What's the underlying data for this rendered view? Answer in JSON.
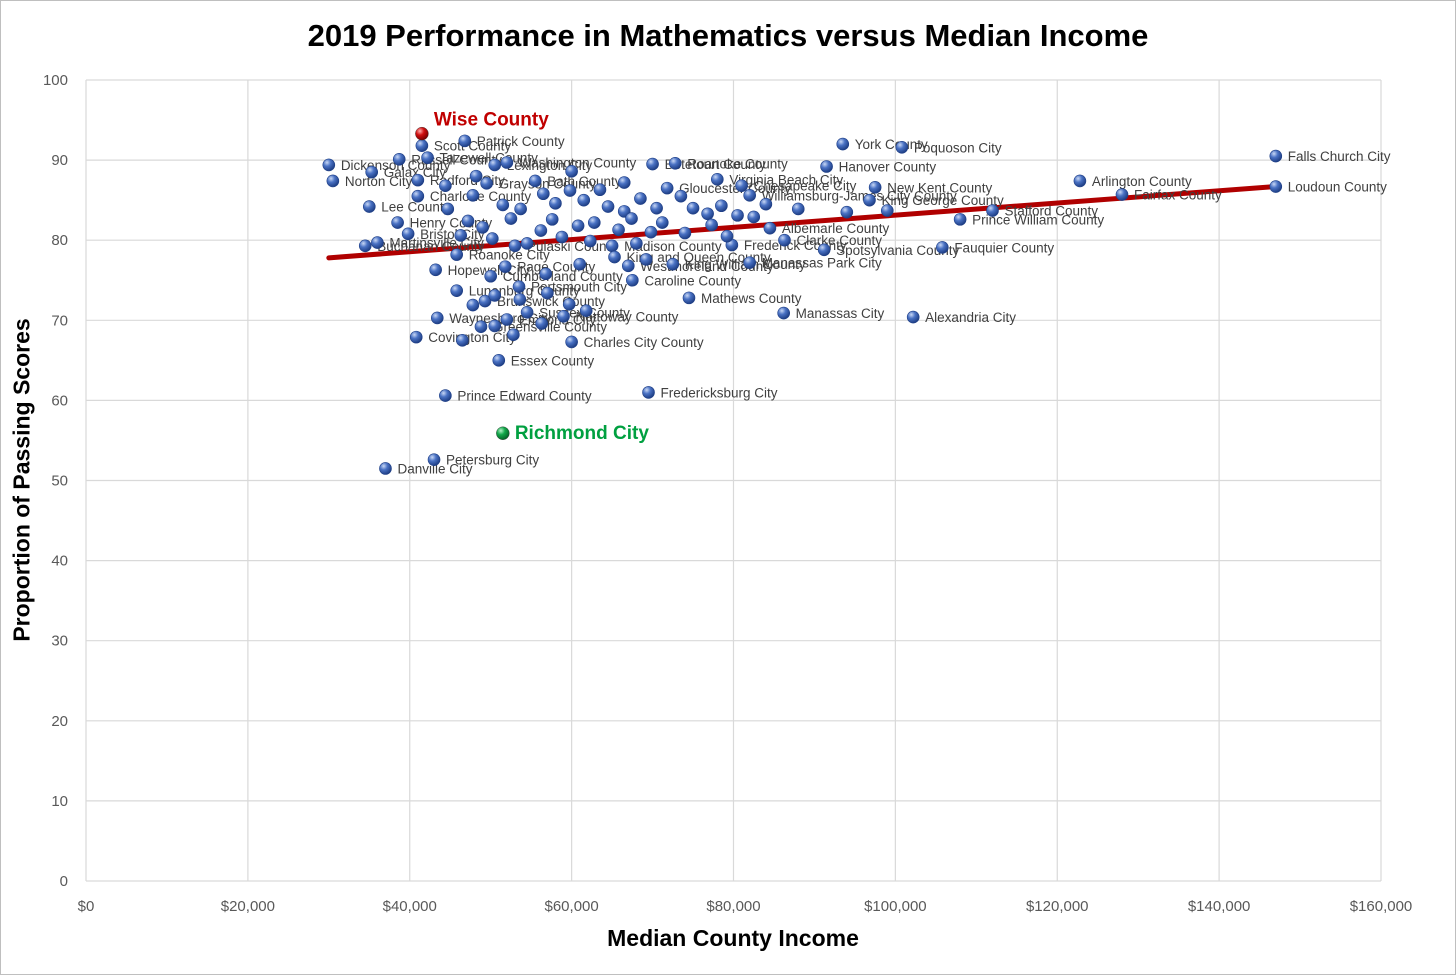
{
  "chart_data": {
    "type": "scatter",
    "title": "2019 Performance in Mathematics versus Median Income",
    "xlabel": "Median County Income",
    "ylabel": "Proportion of Passing Scores",
    "xlim": [
      0,
      160000
    ],
    "ylim": [
      0,
      100
    ],
    "x_ticks": [
      0,
      20000,
      40000,
      60000,
      80000,
      100000,
      120000,
      140000,
      160000
    ],
    "x_tick_labels": [
      "$0",
      "$20,000",
      "$40,000",
      "$60,000",
      "$80,000",
      "$100,000",
      "$120,000",
      "$140,000",
      "$160,000"
    ],
    "y_ticks": [
      0,
      10,
      20,
      30,
      40,
      50,
      60,
      70,
      80,
      90,
      100
    ],
    "y_tick_labels": [
      "0",
      "10",
      "20",
      "30",
      "40",
      "50",
      "60",
      "70",
      "80",
      "90",
      "100"
    ],
    "grid": true,
    "legend": "none",
    "colors": {
      "points": "#3f66b8",
      "trendline": "#b00000",
      "wise": "#c00000",
      "richmond": "#00a040",
      "grid": "#d9d9d9"
    },
    "trendline": {
      "x": [
        30000,
        147000
      ],
      "y": [
        77.8,
        86.7
      ]
    },
    "highlighted": [
      {
        "name": "Wise County",
        "x": 41500,
        "y": 93.3,
        "color": "#c00000"
      },
      {
        "name": "Richmond City",
        "x": 51500,
        "y": 55.9,
        "color": "#00a040"
      }
    ],
    "points": [
      {
        "name": "Patrick County",
        "x": 46800,
        "y": 92.4
      },
      {
        "name": "Scott County",
        "x": 41500,
        "y": 91.8
      },
      {
        "name": "Dickenson County",
        "x": 30000,
        "y": 89.4
      },
      {
        "name": "Russell County",
        "x": 38700,
        "y": 90.1
      },
      {
        "name": "Tazewell County",
        "x": 42200,
        "y": 90.3
      },
      {
        "name": "Washington County",
        "x": 52000,
        "y": 89.7
      },
      {
        "name": "Lexington City",
        "x": 50500,
        "y": 89.4
      },
      {
        "name": "Roanoke County",
        "x": 72800,
        "y": 89.6
      },
      {
        "name": "Botetourt County",
        "x": 70000,
        "y": 89.5
      },
      {
        "name": "York County",
        "x": 93500,
        "y": 92.0
      },
      {
        "name": "Poquoson City",
        "x": 100800,
        "y": 91.6
      },
      {
        "name": "Hanover County",
        "x": 91500,
        "y": 89.2
      },
      {
        "name": "Falls Church City",
        "x": 147000,
        "y": 90.5
      },
      {
        "name": "Norton City",
        "x": 30500,
        "y": 87.4
      },
      {
        "name": "Galax City",
        "x": 35300,
        "y": 88.5
      },
      {
        "name": "Radford City",
        "x": 41000,
        "y": 87.5
      },
      {
        "name": "Grayson County",
        "x": 49500,
        "y": 87.1
      },
      {
        "name": "Bath County",
        "x": 55500,
        "y": 87.4
      },
      {
        "name": "Charlotte County",
        "x": 41000,
        "y": 85.5
      },
      {
        "name": "Lee County",
        "x": 35000,
        "y": 84.2
      },
      {
        "name": "Virginia Beach City",
        "x": 78000,
        "y": 87.6
      },
      {
        "name": "Chesapeake City",
        "x": 81000,
        "y": 86.8
      },
      {
        "name": "Gloucester County",
        "x": 71800,
        "y": 86.5
      },
      {
        "name": "New Kent County",
        "x": 97500,
        "y": 86.6
      },
      {
        "name": "Williamsburg-James City County",
        "x": 82000,
        "y": 85.6
      },
      {
        "name": "King George County",
        "x": 96800,
        "y": 85.0
      },
      {
        "name": "Arlington County",
        "x": 122800,
        "y": 87.4
      },
      {
        "name": "Fairfax County",
        "x": 128000,
        "y": 85.7
      },
      {
        "name": "Loudoun County",
        "x": 147000,
        "y": 86.7
      },
      {
        "name": "Stafford County",
        "x": 112000,
        "y": 83.7
      },
      {
        "name": "Prince William County",
        "x": 108000,
        "y": 82.6
      },
      {
        "name": "Henry County",
        "x": 38500,
        "y": 82.2
      },
      {
        "name": "Bristol City",
        "x": 39800,
        "y": 80.8
      },
      {
        "name": "Martinsville City",
        "x": 36000,
        "y": 79.7
      },
      {
        "name": "Buchanan County",
        "x": 34500,
        "y": 79.3
      },
      {
        "name": "Roanoke City",
        "x": 45800,
        "y": 78.2
      },
      {
        "name": "Pulaski County",
        "x": 53000,
        "y": 79.3
      },
      {
        "name": "Page County",
        "x": 51800,
        "y": 76.7
      },
      {
        "name": "Hopewell City",
        "x": 43200,
        "y": 76.3
      },
      {
        "name": "Cumberland County",
        "x": 50000,
        "y": 75.5
      },
      {
        "name": "Madison County",
        "x": 65000,
        "y": 79.3
      },
      {
        "name": "King and Queen County",
        "x": 65300,
        "y": 77.9
      },
      {
        "name": "Westmoreland County",
        "x": 67000,
        "y": 76.8
      },
      {
        "name": "King William County",
        "x": 72500,
        "y": 77.0
      },
      {
        "name": "Manassas Park City",
        "x": 82000,
        "y": 77.2
      },
      {
        "name": "Caroline County",
        "x": 67500,
        "y": 75.0
      },
      {
        "name": "Frederick County",
        "x": 79800,
        "y": 79.4
      },
      {
        "name": "Clarke County",
        "x": 86300,
        "y": 80.0
      },
      {
        "name": "Spotsylvania County",
        "x": 91200,
        "y": 78.8
      },
      {
        "name": "Fauquier County",
        "x": 105800,
        "y": 79.1
      },
      {
        "name": "Albemarle County",
        "x": 84500,
        "y": 81.5
      },
      {
        "name": "Portsmouth City",
        "x": 53500,
        "y": 74.2
      },
      {
        "name": "Lunenburg County",
        "x": 45800,
        "y": 73.7
      },
      {
        "name": "Brunswick County",
        "x": 49300,
        "y": 72.4
      },
      {
        "name": "Mathews County",
        "x": 74500,
        "y": 72.8
      },
      {
        "name": "Waynesboro City",
        "x": 43400,
        "y": 70.3
      },
      {
        "name": "Sussex County",
        "x": 54500,
        "y": 71.0
      },
      {
        "name": "Emporia City",
        "x": 52000,
        "y": 70.1
      },
      {
        "name": "Nottoway County",
        "x": 59000,
        "y": 70.5
      },
      {
        "name": "Manassas City",
        "x": 86200,
        "y": 70.9
      },
      {
        "name": "Alexandria City",
        "x": 102200,
        "y": 70.4
      },
      {
        "name": "Covington City",
        "x": 40800,
        "y": 67.9
      },
      {
        "name": "Greensville County",
        "x": 48800,
        "y": 69.2
      },
      {
        "name": "Charles City County",
        "x": 60000,
        "y": 67.3
      },
      {
        "name": "Essex County",
        "x": 51000,
        "y": 65.0
      },
      {
        "name": "Prince Edward County",
        "x": 44400,
        "y": 60.6
      },
      {
        "name": "Fredericksburg City",
        "x": 69500,
        "y": 61.0
      },
      {
        "name": "Petersburg City",
        "x": 43000,
        "y": 52.6
      },
      {
        "name": "Danville City",
        "x": 37000,
        "y": 51.5
      },
      {
        "x": 44400,
        "y": 86.8
      },
      {
        "x": 47800,
        "y": 85.6
      },
      {
        "x": 51500,
        "y": 84.4
      },
      {
        "x": 53700,
        "y": 83.9
      },
      {
        "x": 56500,
        "y": 85.8
      },
      {
        "x": 58000,
        "y": 84.6
      },
      {
        "x": 59800,
        "y": 86.2
      },
      {
        "x": 61500,
        "y": 85.0
      },
      {
        "x": 63500,
        "y": 86.3
      },
      {
        "x": 64500,
        "y": 84.2
      },
      {
        "x": 66500,
        "y": 83.6
      },
      {
        "x": 68500,
        "y": 85.2
      },
      {
        "x": 70500,
        "y": 84.0
      },
      {
        "x": 73500,
        "y": 85.5
      },
      {
        "x": 75000,
        "y": 84.0
      },
      {
        "x": 76800,
        "y": 83.3
      },
      {
        "x": 78500,
        "y": 84.3
      },
      {
        "x": 80500,
        "y": 83.1
      },
      {
        "x": 82500,
        "y": 82.9
      },
      {
        "x": 84000,
        "y": 84.5
      },
      {
        "x": 88000,
        "y": 83.9
      },
      {
        "x": 94000,
        "y": 83.5
      },
      {
        "x": 99000,
        "y": 83.7
      },
      {
        "x": 44700,
        "y": 83.9
      },
      {
        "x": 47200,
        "y": 82.4
      },
      {
        "x": 49000,
        "y": 81.6
      },
      {
        "x": 52500,
        "y": 82.7
      },
      {
        "x": 56200,
        "y": 81.2
      },
      {
        "x": 57600,
        "y": 82.6
      },
      {
        "x": 60800,
        "y": 81.8
      },
      {
        "x": 62800,
        "y": 82.2
      },
      {
        "x": 65800,
        "y": 81.3
      },
      {
        "x": 67400,
        "y": 82.7
      },
      {
        "x": 69800,
        "y": 81.0
      },
      {
        "x": 71200,
        "y": 82.2
      },
      {
        "x": 74000,
        "y": 80.9
      },
      {
        "x": 77300,
        "y": 81.9
      },
      {
        "x": 79200,
        "y": 80.5
      },
      {
        "x": 46300,
        "y": 80.6
      },
      {
        "x": 50200,
        "y": 80.2
      },
      {
        "x": 54500,
        "y": 79.6
      },
      {
        "x": 58800,
        "y": 80.4
      },
      {
        "x": 62300,
        "y": 79.9
      },
      {
        "x": 68000,
        "y": 79.6
      },
      {
        "x": 48200,
        "y": 88.0
      },
      {
        "x": 60000,
        "y": 88.6
      },
      {
        "x": 66500,
        "y": 87.2
      },
      {
        "x": 61000,
        "y": 77.0
      },
      {
        "x": 69200,
        "y": 77.6
      },
      {
        "x": 56800,
        "y": 75.8
      },
      {
        "x": 50500,
        "y": 73.1
      },
      {
        "x": 47800,
        "y": 71.9
      },
      {
        "x": 53600,
        "y": 72.6
      },
      {
        "x": 57000,
        "y": 73.4
      },
      {
        "x": 59700,
        "y": 72.0
      },
      {
        "x": 61800,
        "y": 71.2
      },
      {
        "x": 56300,
        "y": 69.6
      },
      {
        "x": 50500,
        "y": 69.3
      },
      {
        "x": 46500,
        "y": 67.5
      },
      {
        "x": 52800,
        "y": 68.2
      }
    ]
  }
}
